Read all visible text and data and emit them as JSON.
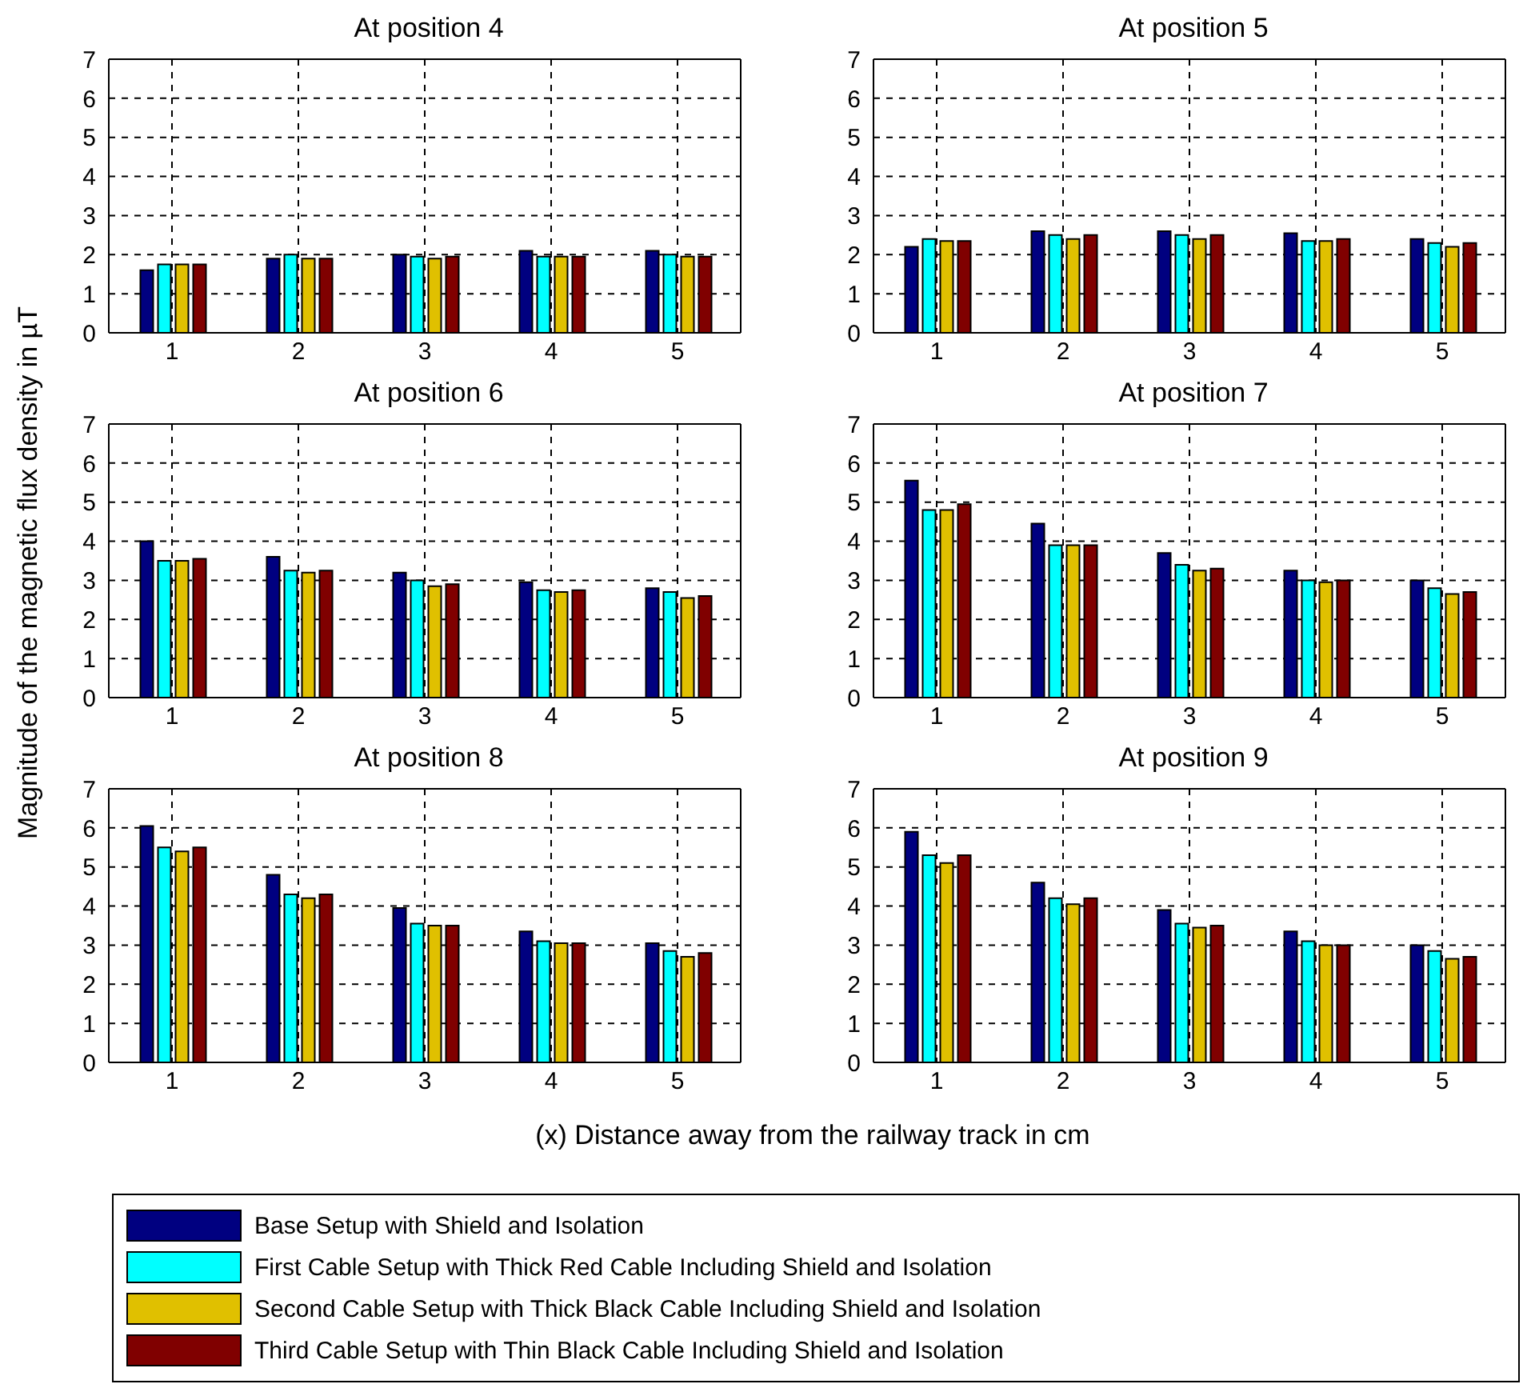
{
  "chart_data": [
    {
      "type": "bar",
      "title": "At position 4",
      "categories": [
        "1",
        "2",
        "3",
        "4",
        "5"
      ],
      "ylim": [
        0,
        7
      ],
      "yticks": [
        0,
        1,
        2,
        3,
        4,
        5,
        6,
        7
      ],
      "grid": true,
      "legend": "bottom",
      "series": [
        {
          "name": "Base Setup with Shield and Isolation",
          "color": "#000080",
          "values": [
            1.6,
            1.9,
            2.0,
            2.1,
            2.1
          ]
        },
        {
          "name": "First Cable Setup with Thick Red Cable Including Shield and Isolation",
          "color": "#00ffff",
          "values": [
            1.75,
            2.0,
            1.95,
            1.95,
            2.0
          ]
        },
        {
          "name": "Second Cable Setup with Thick Black Cable Including Shield and Isolation",
          "color": "#e0c000",
          "values": [
            1.75,
            1.9,
            1.9,
            1.95,
            1.95
          ]
        },
        {
          "name": "Third Cable Setup with Thin Black Cable Including Shield and Isolation",
          "color": "#800000",
          "values": [
            1.75,
            1.9,
            1.95,
            1.95,
            1.95
          ]
        }
      ]
    },
    {
      "type": "bar",
      "title": "At position 5",
      "categories": [
        "1",
        "2",
        "3",
        "4",
        "5"
      ],
      "ylim": [
        0,
        7
      ],
      "yticks": [
        0,
        1,
        2,
        3,
        4,
        5,
        6,
        7
      ],
      "grid": true,
      "series": [
        {
          "color": "#000080",
          "values": [
            2.2,
            2.6,
            2.6,
            2.55,
            2.4
          ]
        },
        {
          "color": "#00ffff",
          "values": [
            2.4,
            2.5,
            2.5,
            2.35,
            2.3
          ]
        },
        {
          "color": "#e0c000",
          "values": [
            2.35,
            2.4,
            2.4,
            2.35,
            2.2
          ]
        },
        {
          "color": "#800000",
          "values": [
            2.35,
            2.5,
            2.5,
            2.4,
            2.3
          ]
        }
      ]
    },
    {
      "type": "bar",
      "title": "At position 6",
      "ylabel": "Magnitude of the magnetic flux density in µT",
      "categories": [
        "1",
        "2",
        "3",
        "4",
        "5"
      ],
      "ylim": [
        0,
        7
      ],
      "yticks": [
        0,
        1,
        2,
        3,
        4,
        5,
        6,
        7
      ],
      "grid": true,
      "series": [
        {
          "color": "#000080",
          "values": [
            4.0,
            3.6,
            3.2,
            2.95,
            2.8
          ]
        },
        {
          "color": "#00ffff",
          "values": [
            3.5,
            3.25,
            3.0,
            2.75,
            2.7
          ]
        },
        {
          "color": "#e0c000",
          "values": [
            3.5,
            3.2,
            2.85,
            2.7,
            2.55
          ]
        },
        {
          "color": "#800000",
          "values": [
            3.55,
            3.25,
            2.9,
            2.75,
            2.6
          ]
        }
      ]
    },
    {
      "type": "bar",
      "title": "At position 7",
      "categories": [
        "1",
        "2",
        "3",
        "4",
        "5"
      ],
      "ylim": [
        0,
        7
      ],
      "yticks": [
        0,
        1,
        2,
        3,
        4,
        5,
        6,
        7
      ],
      "grid": true,
      "series": [
        {
          "color": "#000080",
          "values": [
            5.55,
            4.45,
            3.7,
            3.25,
            3.0
          ]
        },
        {
          "color": "#00ffff",
          "values": [
            4.8,
            3.9,
            3.4,
            3.0,
            2.8
          ]
        },
        {
          "color": "#e0c000",
          "values": [
            4.8,
            3.9,
            3.25,
            2.95,
            2.65
          ]
        },
        {
          "color": "#800000",
          "values": [
            4.95,
            3.9,
            3.3,
            3.0,
            2.7
          ]
        }
      ]
    },
    {
      "type": "bar",
      "title": "At position 8",
      "xlabel": "(x) Distance away from the railway track in cm",
      "categories": [
        "1",
        "2",
        "3",
        "4",
        "5"
      ],
      "ylim": [
        0,
        7
      ],
      "yticks": [
        0,
        1,
        2,
        3,
        4,
        5,
        6,
        7
      ],
      "grid": true,
      "series": [
        {
          "color": "#000080",
          "values": [
            6.05,
            4.8,
            3.95,
            3.35,
            3.05
          ]
        },
        {
          "color": "#00ffff",
          "values": [
            5.5,
            4.3,
            3.55,
            3.1,
            2.85
          ]
        },
        {
          "color": "#e0c000",
          "values": [
            5.4,
            4.2,
            3.5,
            3.05,
            2.7
          ]
        },
        {
          "color": "#800000",
          "values": [
            5.5,
            4.3,
            3.5,
            3.05,
            2.8
          ]
        }
      ]
    },
    {
      "type": "bar",
      "title": "At position 9",
      "categories": [
        "1",
        "2",
        "3",
        "4",
        "5"
      ],
      "ylim": [
        0,
        7
      ],
      "yticks": [
        0,
        1,
        2,
        3,
        4,
        5,
        6,
        7
      ],
      "grid": true,
      "series": [
        {
          "color": "#000080",
          "values": [
            5.9,
            4.6,
            3.9,
            3.35,
            3.0
          ]
        },
        {
          "color": "#00ffff",
          "values": [
            5.3,
            4.2,
            3.55,
            3.1,
            2.85
          ]
        },
        {
          "color": "#e0c000",
          "values": [
            5.1,
            4.05,
            3.45,
            3.0,
            2.65
          ]
        },
        {
          "color": "#800000",
          "values": [
            5.3,
            4.2,
            3.5,
            3.0,
            2.7
          ]
        }
      ]
    }
  ]
}
